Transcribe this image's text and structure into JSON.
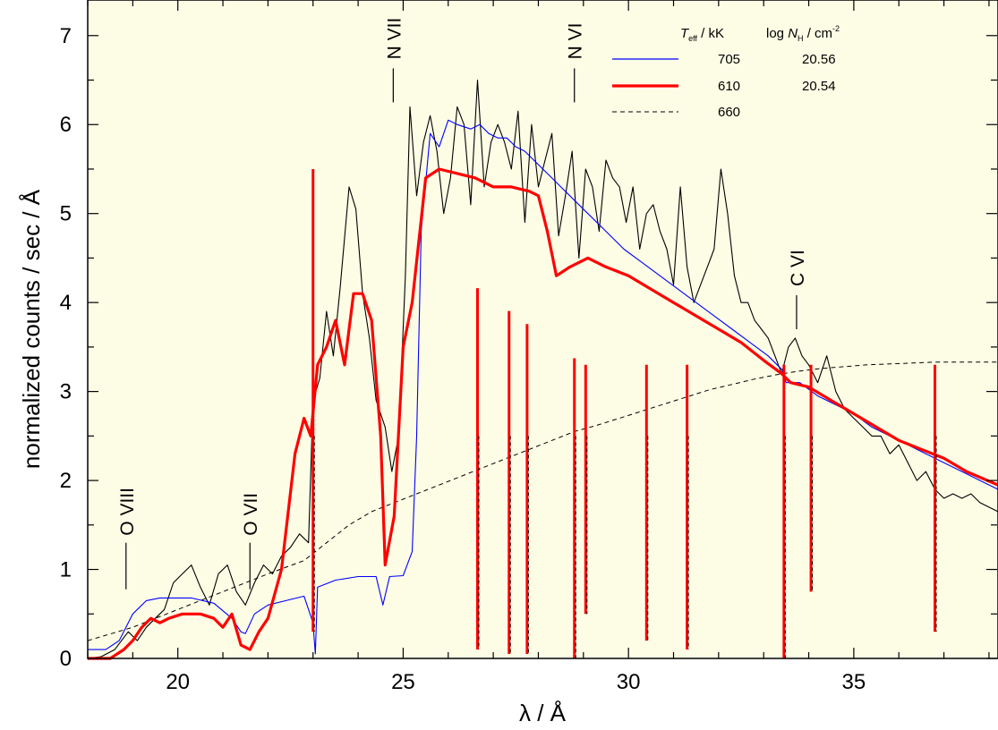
{
  "chart_data": {
    "type": "line",
    "xlabel": "λ / Å",
    "ylabel": "normalized counts / sec / Å",
    "xlim": [
      18,
      38.2
    ],
    "ylim": [
      0,
      7.4
    ],
    "xticks": [
      20,
      25,
      30,
      35
    ],
    "yticks": [
      0,
      1,
      2,
      3,
      4,
      5,
      6,
      7
    ],
    "background": "#fdfde6",
    "grid": false,
    "legend": {
      "placement": "top-right",
      "header": {
        "teff_symbol": "T",
        "teff_sub": "eff",
        "teff_unit": " / kK",
        "nh_prefix": "log ",
        "nh_symbol": "N",
        "nh_sub": "H",
        "nh_unit": " / cm",
        "nh_sup": "-2"
      },
      "rows": [
        {
          "teff": "705",
          "nh": "20.56"
        },
        {
          "teff": "610",
          "nh": "20.54"
        },
        {
          "teff": "660",
          "nh": ""
        }
      ]
    },
    "ion_labels": [
      {
        "text": "O VIII",
        "x": 18.85,
        "y_level": 1.3,
        "position": "below"
      },
      {
        "text": "O VII",
        "x": 21.6,
        "y_level": 1.3,
        "position": "below"
      },
      {
        "text": "N VII",
        "x": 24.78,
        "y_level": 6.25,
        "position": "above"
      },
      {
        "text": "N VI",
        "x": 28.8,
        "y_level": 6.25,
        "position": "above"
      },
      {
        "text": "C VI",
        "x": 33.73,
        "y_level": 3.7,
        "position": "above"
      }
    ],
    "series": [
      {
        "color": "#000000",
        "style": "observed",
        "x": [
          18.0,
          18.3,
          18.6,
          18.9,
          19.1,
          19.3,
          19.5,
          19.7,
          19.9,
          20.1,
          20.3,
          20.5,
          20.7,
          20.9,
          21.1,
          21.3,
          21.5,
          21.7,
          21.9,
          22.1,
          22.3,
          22.5,
          22.7,
          22.9,
          23.0,
          23.15,
          23.3,
          23.45,
          23.6,
          23.8,
          23.95,
          24.1,
          24.25,
          24.4,
          24.6,
          24.75,
          24.9,
          25.05,
          25.15,
          25.3,
          25.45,
          25.6,
          25.75,
          25.9,
          26.05,
          26.2,
          26.35,
          26.5,
          26.65,
          26.8,
          26.95,
          27.1,
          27.25,
          27.4,
          27.55,
          27.7,
          27.85,
          28.0,
          28.15,
          28.3,
          28.45,
          28.6,
          28.75,
          28.9,
          29.05,
          29.2,
          29.35,
          29.5,
          29.65,
          29.8,
          29.95,
          30.1,
          30.25,
          30.4,
          30.55,
          30.7,
          30.85,
          31.0,
          31.15,
          31.3,
          31.45,
          31.6,
          31.75,
          31.9,
          32.05,
          32.2,
          32.35,
          32.5,
          32.65,
          32.8,
          32.95,
          33.1,
          33.25,
          33.4,
          33.55,
          33.7,
          33.85,
          34.0,
          34.2,
          34.4,
          34.6,
          34.8,
          35.0,
          35.2,
          35.4,
          35.6,
          35.8,
          36.0,
          36.2,
          36.4,
          36.6,
          36.8,
          37.0,
          37.2,
          37.4,
          37.6,
          37.8,
          38.0,
          38.2
        ],
        "values": [
          0.0,
          0.02,
          0.1,
          0.3,
          0.2,
          0.35,
          0.45,
          0.55,
          0.85,
          0.95,
          1.05,
          0.8,
          0.6,
          0.95,
          1.05,
          0.75,
          0.6,
          0.85,
          1.05,
          0.95,
          1.15,
          1.25,
          1.4,
          1.3,
          2.9,
          3.15,
          3.9,
          3.4,
          4.15,
          5.3,
          5.05,
          4.1,
          3.6,
          2.9,
          2.6,
          2.1,
          2.5,
          4.3,
          6.2,
          5.2,
          5.8,
          6.1,
          5.7,
          5.0,
          5.4,
          6.2,
          6.0,
          5.1,
          6.5,
          5.3,
          5.8,
          6.0,
          5.8,
          5.5,
          6.15,
          4.9,
          6.0,
          5.3,
          5.6,
          5.9,
          4.75,
          5.2,
          5.7,
          4.5,
          5.5,
          5.3,
          4.8,
          5.6,
          5.4,
          5.3,
          4.9,
          5.3,
          4.6,
          5.0,
          5.1,
          4.8,
          4.6,
          4.2,
          5.3,
          4.4,
          4.0,
          4.2,
          4.4,
          4.6,
          5.5,
          5.0,
          4.3,
          4.0,
          4.0,
          3.8,
          3.7,
          3.6,
          3.4,
          3.2,
          3.5,
          3.6,
          3.4,
          3.3,
          3.1,
          3.4,
          3.0,
          2.8,
          2.7,
          2.6,
          2.5,
          2.5,
          2.3,
          2.4,
          2.2,
          2.0,
          2.1,
          1.9,
          1.8,
          1.85,
          1.8,
          1.85,
          1.75,
          1.7,
          1.65
        ]
      },
      {
        "color": "#0000ff",
        "style": "model-705",
        "x": [
          18.0,
          18.4,
          18.7,
          19.0,
          19.3,
          19.6,
          19.9,
          20.3,
          20.8,
          21.2,
          21.4,
          21.5,
          21.7,
          22.0,
          22.4,
          22.8,
          23.0,
          23.05,
          23.1,
          23.5,
          24.0,
          24.4,
          24.55,
          24.7,
          25.0,
          25.2,
          25.3,
          25.4,
          25.6,
          25.8,
          26.0,
          26.2,
          26.5,
          26.7,
          26.9,
          27.1,
          27.3,
          27.5,
          27.7,
          27.9,
          28.1,
          28.3,
          28.5,
          28.8,
          29.1,
          29.5,
          29.9,
          30.3,
          30.7,
          31.1,
          31.5,
          31.9,
          32.3,
          32.7,
          33.1,
          33.4,
          33.5,
          33.8,
          34.2,
          34.6,
          35.0,
          35.4,
          35.8,
          36.2,
          36.6,
          37.0,
          37.4,
          37.8,
          38.2
        ],
        "values": [
          0.1,
          0.1,
          0.2,
          0.5,
          0.65,
          0.68,
          0.68,
          0.68,
          0.62,
          0.45,
          0.3,
          0.28,
          0.5,
          0.6,
          0.65,
          0.7,
          0.4,
          0.05,
          0.8,
          0.88,
          0.92,
          0.92,
          0.6,
          0.92,
          0.93,
          1.2,
          2.5,
          4.8,
          5.9,
          5.75,
          6.05,
          6.0,
          5.95,
          6.0,
          5.9,
          5.85,
          5.85,
          5.75,
          5.7,
          5.6,
          5.5,
          5.4,
          5.3,
          5.15,
          5.0,
          4.8,
          4.6,
          4.45,
          4.3,
          4.15,
          4.0,
          3.85,
          3.7,
          3.55,
          3.4,
          3.25,
          3.1,
          3.1,
          2.95,
          2.85,
          2.75,
          2.6,
          2.5,
          2.4,
          2.3,
          2.2,
          2.1,
          2.0,
          1.9
        ]
      },
      {
        "color": "#ff0000",
        "style": "model-610",
        "x": [
          18.0,
          18.5,
          18.8,
          19.0,
          19.2,
          19.4,
          19.6,
          19.8,
          20.1,
          20.5,
          20.8,
          21.0,
          21.2,
          21.4,
          21.6,
          21.8,
          22.0,
          22.3,
          22.6,
          22.8,
          22.95,
          23.1,
          23.3,
          23.5,
          23.7,
          23.9,
          24.1,
          24.3,
          24.5,
          24.6,
          24.8,
          25.0,
          25.2,
          25.5,
          25.8,
          26.2,
          26.6,
          27.0,
          27.4,
          27.8,
          28.0,
          28.2,
          28.4,
          28.7,
          29.1,
          29.5,
          30.0,
          30.5,
          31.0,
          31.5,
          32.0,
          32.5,
          33.0,
          33.4,
          33.6,
          34.0,
          34.5,
          35.0,
          35.5,
          36.0,
          36.5,
          37.0,
          37.5,
          38.2
        ],
        "values": [
          0.0,
          0.0,
          0.1,
          0.2,
          0.35,
          0.45,
          0.4,
          0.45,
          0.5,
          0.5,
          0.45,
          0.35,
          0.5,
          0.15,
          0.1,
          0.3,
          0.45,
          1.0,
          2.3,
          2.7,
          2.5,
          3.3,
          3.5,
          3.8,
          3.3,
          4.1,
          4.1,
          3.8,
          2.5,
          1.05,
          1.6,
          3.5,
          4.0,
          5.4,
          5.5,
          5.45,
          5.4,
          5.3,
          5.3,
          5.25,
          5.2,
          4.8,
          4.3,
          4.4,
          4.5,
          4.4,
          4.3,
          4.15,
          4.0,
          3.85,
          3.7,
          3.55,
          3.35,
          3.2,
          3.1,
          3.05,
          2.9,
          2.75,
          2.6,
          2.45,
          2.35,
          2.25,
          2.1,
          1.95
        ]
      },
      {
        "color": "#000000",
        "style": "model-660",
        "x": [
          18.0,
          19.0,
          20.0,
          21.0,
          22.0,
          22.8,
          23.3,
          23.8,
          24.3,
          24.8,
          25.3,
          25.8,
          26.3,
          26.8,
          27.3,
          27.8,
          28.3,
          28.8,
          29.3,
          29.8,
          30.3,
          30.8,
          31.3,
          31.8,
          32.3,
          32.8,
          33.3,
          33.8,
          34.3,
          34.8,
          35.3,
          35.8,
          36.3,
          36.8,
          37.3,
          37.8,
          38.2
        ],
        "values": [
          0.2,
          0.35,
          0.55,
          0.75,
          0.95,
          1.1,
          1.3,
          1.5,
          1.65,
          1.75,
          1.85,
          1.95,
          2.05,
          2.15,
          2.25,
          2.35,
          2.45,
          2.55,
          2.62,
          2.7,
          2.78,
          2.86,
          2.94,
          3.02,
          3.08,
          3.14,
          3.19,
          3.23,
          3.26,
          3.28,
          3.3,
          3.31,
          3.32,
          3.33,
          3.33,
          3.33,
          3.33
        ]
      }
    ],
    "absorption_lines": [
      {
        "x": 23.0,
        "depth_to": 0.3
      },
      {
        "x": 26.65,
        "depth_to": 0.1
      },
      {
        "x": 27.35,
        "depth_to": 0.05
      },
      {
        "x": 27.75,
        "depth_to": 0.05
      },
      {
        "x": 28.8,
        "depth_to": 0.0
      },
      {
        "x": 29.05,
        "depth_to": 0.5
      },
      {
        "x": 30.4,
        "depth_to": 0.2
      },
      {
        "x": 31.3,
        "depth_to": 0.1
      },
      {
        "x": 33.45,
        "depth_to": 0.0
      },
      {
        "x": 34.05,
        "depth_to": 0.75
      },
      {
        "x": 36.8,
        "depth_to": 0.3
      }
    ]
  }
}
